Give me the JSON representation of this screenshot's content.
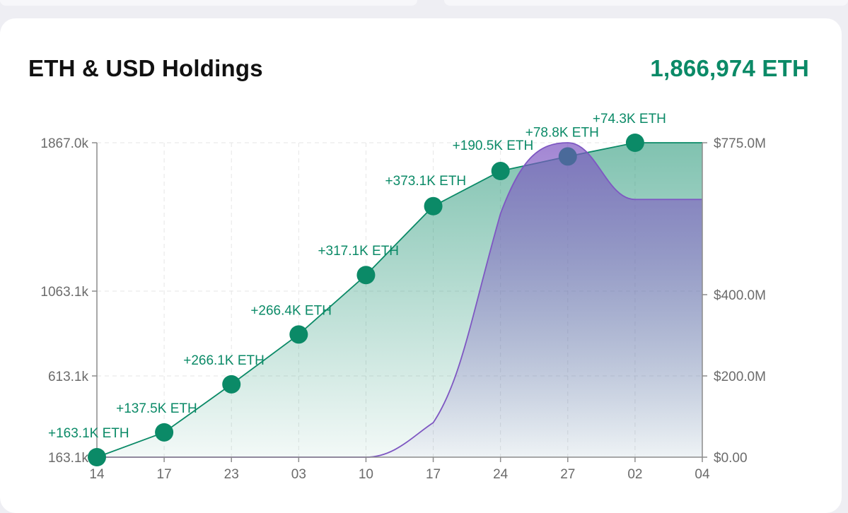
{
  "card": {
    "title": "ETH & USD Holdings",
    "total": "1,866,974 ETH"
  },
  "chart_data": {
    "type": "area",
    "x_tick_labels": [
      "14",
      "17",
      "23",
      "03",
      "10",
      "17",
      "24",
      "27",
      "02",
      "04"
    ],
    "left_axis": {
      "tick_labels": [
        "1867.0k",
        "1063.1k",
        "613.1k",
        "163.1k"
      ],
      "tick_values": [
        1867.0,
        1063.1,
        613.1,
        163.1
      ],
      "range": [
        163.1,
        1867.0
      ]
    },
    "right_axis": {
      "tick_labels": [
        "$775.0M",
        "$400.0M",
        "$200.0M",
        "$0.00"
      ],
      "tick_values": [
        775,
        400,
        200,
        0
      ],
      "range": [
        0,
        775
      ]
    },
    "grid": true,
    "colors": {
      "eth": "#0b8a67",
      "usd": "#7e57c2",
      "highlight_marker": "#4a6a9a"
    },
    "series": [
      {
        "axis": "left",
        "color": "#0b8a67",
        "points": [
          {
            "x": "14",
            "y": 163.1,
            "label": "+163.1K ETH"
          },
          {
            "x": "17",
            "y": 300.6,
            "label": "+137.5K ETH"
          },
          {
            "x": "23",
            "y": 566.7,
            "label": "+266.1K ETH"
          },
          {
            "x": "03",
            "y": 833.1,
            "label": "+266.4K ETH"
          },
          {
            "x": "10",
            "y": 1150.2,
            "label": "+317.1K ETH"
          },
          {
            "x": "17",
            "y": 1523.3,
            "label": "+373.1K ETH"
          },
          {
            "x": "24",
            "y": 1713.8,
            "label": "+190.5K ETH"
          },
          {
            "x": "27",
            "y": 1792.6,
            "label": "+78.8K ETH"
          },
          {
            "x": "02",
            "y": 1867.0,
            "label": "+74.3K ETH"
          },
          {
            "x": "04",
            "y": 1867.0
          }
        ]
      },
      {
        "axis": "right",
        "color": "#7e57c2",
        "points": [
          {
            "x": "14",
            "y": 0
          },
          {
            "x": "10",
            "y": 0
          },
          {
            "x": "17",
            "y": 85
          },
          {
            "x": "24",
            "y": 600
          },
          {
            "x": "27",
            "y": 775
          },
          {
            "x": "02",
            "y": 635
          },
          {
            "x": "04",
            "y": 635
          }
        ]
      }
    ]
  }
}
